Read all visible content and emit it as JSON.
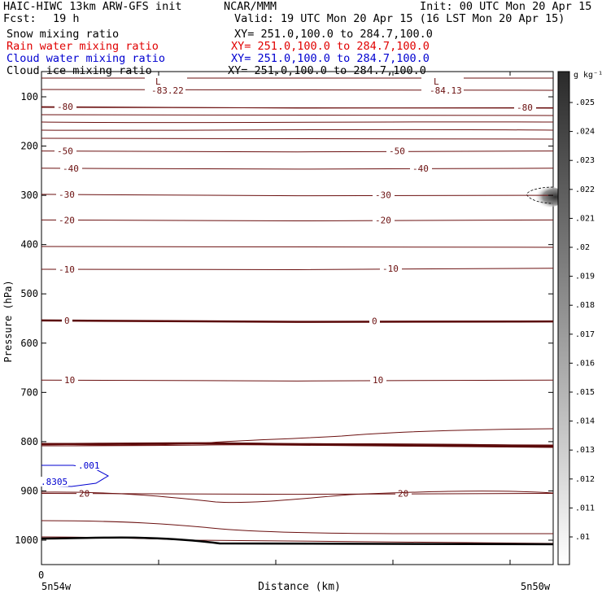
{
  "header": {
    "model": "HAIC-HIWC 13km ARW-GFS init",
    "org": "NCAR/MMM",
    "init": "Init: 00 UTC Mon 20 Apr 15",
    "fcst_label": "Fcst:",
    "fcst_value": "19 h",
    "valid": "Valid: 19 UTC Mon 20 Apr 15 (16 LST Mon 20 Apr 15)"
  },
  "fields": [
    {
      "name": "Snow mixing ratio",
      "xy": "XY= 251.0,100.0 to 284.7,100.0",
      "color": "#000000"
    },
    {
      "name": "Rain water mixing ratio",
      "xy": "XY= 251.0,100.0 to 284.7,100.0",
      "color": "#e00000"
    },
    {
      "name": "Cloud water mixing ratio",
      "xy": "XY= 251.0,100.0 to 284.7,100.0",
      "color": "#0000d0"
    },
    {
      "name": "Cloud ice mixing ratio",
      "xy": "XY= 251.0,100.0 to 284.7,100.0",
      "color": "#000000"
    }
  ],
  "chart_data": {
    "type": "contour",
    "xlabel": "Distance (km)",
    "ylabel": "Pressure (hPa)",
    "x_start_tick": "0",
    "x_left_label": "5n54w",
    "x_right_label": "5n50w",
    "ylim": [
      1050,
      75
    ],
    "y_ticks": [
      100,
      200,
      300,
      400,
      500,
      600,
      700,
      800,
      900,
      1000
    ],
    "colorbar": {
      "unit": "g kg⁻¹",
      "ticks": [
        ".01",
        ".011",
        ".012",
        ".013",
        ".014",
        ".015",
        ".016",
        ".017",
        ".018",
        ".019",
        ".02",
        ".021",
        ".022",
        ".023",
        ".024",
        ".025"
      ]
    },
    "temperature_contours": [
      {
        "label": "-80",
        "p_left": 120,
        "p_right": 122
      },
      {
        "label": "-50",
        "p_left": 210,
        "p_right": 210
      },
      {
        "label": "-40",
        "p_left": 245,
        "p_right": 245
      },
      {
        "label": "-30",
        "p_left": 298,
        "p_right": 300
      },
      {
        "label": "-20",
        "p_left": 350,
        "p_right": 350
      },
      {
        "label": "-10",
        "p_left": 450,
        "p_right": 448
      },
      {
        "label": "0",
        "p_left": 554,
        "p_right": 556
      },
      {
        "label": "10",
        "p_left": 675,
        "p_right": 675
      },
      {
        "label": "20",
        "p_left": 905,
        "p_right": 905
      }
    ],
    "low_labels": [
      {
        "symbol": "L",
        "value": "-83.22"
      },
      {
        "symbol": "L",
        "value": "-84.13"
      }
    ],
    "cloud_water_labels": [
      ".001",
      ".8305"
    ],
    "surface_note": "terrain surface near 1000 hPa"
  }
}
